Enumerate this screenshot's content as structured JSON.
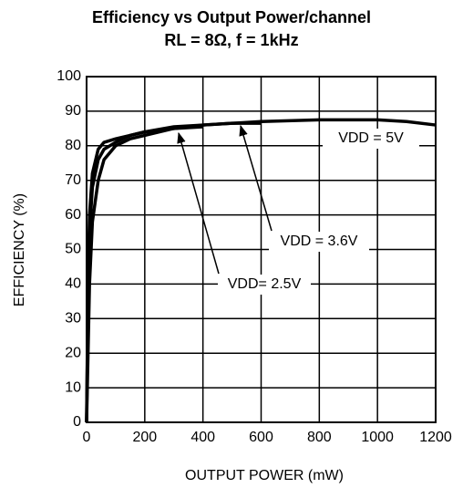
{
  "chart_data": {
    "type": "line",
    "title": "Efficiency vs Output Power/channel",
    "subtitle": "RL = 8Ω, f = 1kHz",
    "x_label": "OUTPUT POWER (mW)",
    "y_label": "EFFICIENCY (%)",
    "xlim": [
      0,
      1200
    ],
    "xticks": [
      0,
      200,
      400,
      600,
      800,
      1000,
      1200
    ],
    "ylim": [
      0,
      100
    ],
    "yticks": [
      0,
      10,
      20,
      30,
      40,
      50,
      60,
      70,
      80,
      90,
      100
    ],
    "grid": true,
    "series": [
      {
        "name": "VDD= 2.5V",
        "color": "#000000",
        "x": [
          0,
          5,
          10,
          20,
          40,
          60,
          100,
          150,
          200,
          300,
          400
        ],
        "values": [
          0,
          40,
          60,
          72,
          79,
          81,
          82,
          83,
          84,
          85,
          85.5
        ]
      },
      {
        "name": "VDD = 3.6V",
        "color": "#000000",
        "x": [
          0,
          5,
          10,
          20,
          40,
          60,
          100,
          150,
          200,
          300,
          400,
          500,
          600
        ],
        "values": [
          0,
          35,
          55,
          68,
          76,
          79,
          81,
          83,
          84,
          85.5,
          86,
          86.5,
          86.5
        ]
      },
      {
        "name": "VDD = 5V",
        "color": "#000000",
        "x": [
          0,
          10,
          20,
          40,
          60,
          100,
          150,
          200,
          300,
          400,
          600,
          800,
          1000,
          1100,
          1200
        ],
        "values": [
          0,
          40,
          58,
          70,
          76,
          80,
          82,
          83,
          85,
          86,
          87,
          87.5,
          87.5,
          87,
          86
        ]
      }
    ]
  }
}
